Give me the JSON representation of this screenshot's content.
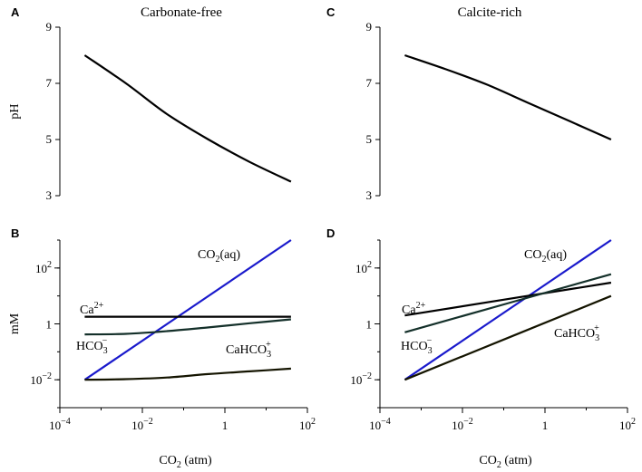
{
  "chart_data": [
    {
      "id": "A",
      "panel_label": "A",
      "type": "line",
      "title": "Carbonate-free",
      "ylabel": "pH",
      "xlabel": "",
      "xscale": "log",
      "xlim": [
        0.0001,
        100
      ],
      "ylim": [
        3,
        9
      ],
      "yticks": [
        "3",
        "5",
        "7",
        "9"
      ],
      "series": [
        {
          "name": "pH",
          "color": "#000000",
          "x": [
            0.0004,
            0.004,
            0.04,
            0.4,
            4,
            40
          ],
          "y": [
            8.0,
            7.0,
            5.9,
            5.0,
            4.2,
            3.5
          ]
        }
      ]
    },
    {
      "id": "C",
      "panel_label": "C",
      "type": "line",
      "title": "Calcite-rich",
      "ylabel": "",
      "xlabel": "",
      "xscale": "log",
      "xlim": [
        0.0001,
        100
      ],
      "ylim": [
        3,
        9
      ],
      "yticks": [
        "3",
        "5",
        "7",
        "9"
      ],
      "series": [
        {
          "name": "pH",
          "color": "#000000",
          "x": [
            0.0004,
            0.004,
            0.04,
            0.4,
            4,
            40
          ],
          "y": [
            8.0,
            7.5,
            6.95,
            6.3,
            5.65,
            5.0
          ]
        }
      ]
    },
    {
      "id": "B",
      "panel_label": "B",
      "type": "line",
      "title": "",
      "ylabel": "mM",
      "xlabel": "CO₂ (atm)",
      "xscale": "log",
      "yscale": "log",
      "xlim": [
        0.0001,
        100
      ],
      "ylim": [
        0.001,
        1000
      ],
      "xticks": [
        {
          "value": 0.0001,
          "base": "10",
          "exp": "−4"
        },
        {
          "value": 0.01,
          "base": "10",
          "exp": "−2"
        },
        {
          "value": 1,
          "base": "1",
          "exp": ""
        },
        {
          "value": 100,
          "base": "10",
          "exp": "2"
        }
      ],
      "yticks": [
        {
          "value": 0.01,
          "base": "10",
          "exp": "−2"
        },
        {
          "value": 1,
          "base": "1",
          "exp": ""
        },
        {
          "value": 100,
          "base": "10",
          "exp": "2"
        }
      ],
      "series": [
        {
          "name": "CO2(aq)",
          "color": "#1a1acc",
          "x": [
            0.0004,
            40
          ],
          "y": [
            0.01,
            1000
          ]
        },
        {
          "name": "Ca2+",
          "color": "#000000",
          "x": [
            0.0004,
            0.004,
            0.04,
            0.4,
            4,
            40
          ],
          "y": [
            1.8,
            1.8,
            1.8,
            1.8,
            1.8,
            1.8
          ]
        },
        {
          "name": "HCO3-",
          "color": "#14302a",
          "x": [
            0.0004,
            0.004,
            0.04,
            0.4,
            4,
            40
          ],
          "y": [
            0.42,
            0.44,
            0.55,
            0.75,
            1.05,
            1.45
          ]
        },
        {
          "name": "CaHCO3+",
          "color": "#141400",
          "x": [
            0.0004,
            0.004,
            0.04,
            0.4,
            4,
            40
          ],
          "y": [
            0.01,
            0.0105,
            0.012,
            0.016,
            0.02,
            0.025
          ]
        }
      ],
      "annotations": {
        "co2aq": {
          "pre": "CO",
          "sub": "2",
          "post": "(aq)"
        },
        "ca": {
          "pre": "Ca",
          "sup": "2+"
        },
        "hco3": {
          "pre": "HCO",
          "sub": "3",
          "sup": "−"
        },
        "cahco3": {
          "pre": "CaHCO",
          "sub": "3",
          "sup": "+"
        }
      }
    },
    {
      "id": "D",
      "panel_label": "D",
      "type": "line",
      "title": "",
      "ylabel": "",
      "xlabel": "CO₂ (atm)",
      "xscale": "log",
      "yscale": "log",
      "xlim": [
        0.0001,
        100
      ],
      "ylim": [
        0.001,
        1000
      ],
      "xticks": [
        {
          "value": 0.0001,
          "base": "10",
          "exp": "−4"
        },
        {
          "value": 0.01,
          "base": "10",
          "exp": "−2"
        },
        {
          "value": 1,
          "base": "1",
          "exp": ""
        },
        {
          "value": 100,
          "base": "10",
          "exp": "2"
        }
      ],
      "yticks": [
        {
          "value": 0.01,
          "base": "10",
          "exp": "−2"
        },
        {
          "value": 1,
          "base": "1",
          "exp": ""
        },
        {
          "value": 100,
          "base": "10",
          "exp": "2"
        }
      ],
      "series": [
        {
          "name": "CO2(aq)",
          "color": "#1a1acc",
          "x": [
            0.0004,
            40
          ],
          "y": [
            0.01,
            1000
          ]
        },
        {
          "name": "Ca2+",
          "color": "#000000",
          "x": [
            0.0004,
            40
          ],
          "y": [
            2.0,
            30
          ]
        },
        {
          "name": "HCO3-",
          "color": "#14302a",
          "x": [
            0.0004,
            40
          ],
          "y": [
            0.5,
            60
          ]
        },
        {
          "name": "CaHCO3+",
          "color": "#141400",
          "x": [
            0.0004,
            40
          ],
          "y": [
            0.01,
            10
          ]
        }
      ],
      "annotations": {
        "co2aq": {
          "pre": "CO",
          "sub": "2",
          "post": "(aq)"
        },
        "ca": {
          "pre": "Ca",
          "sup": "2+"
        },
        "hco3": {
          "pre": "HCO",
          "sub": "3",
          "sup": "−"
        },
        "cahco3": {
          "pre": "CaHCO",
          "sub": "3",
          "sup": "+"
        }
      }
    }
  ],
  "xaxis_label": {
    "pre": "CO",
    "sub": "2",
    "post": " (atm)"
  }
}
